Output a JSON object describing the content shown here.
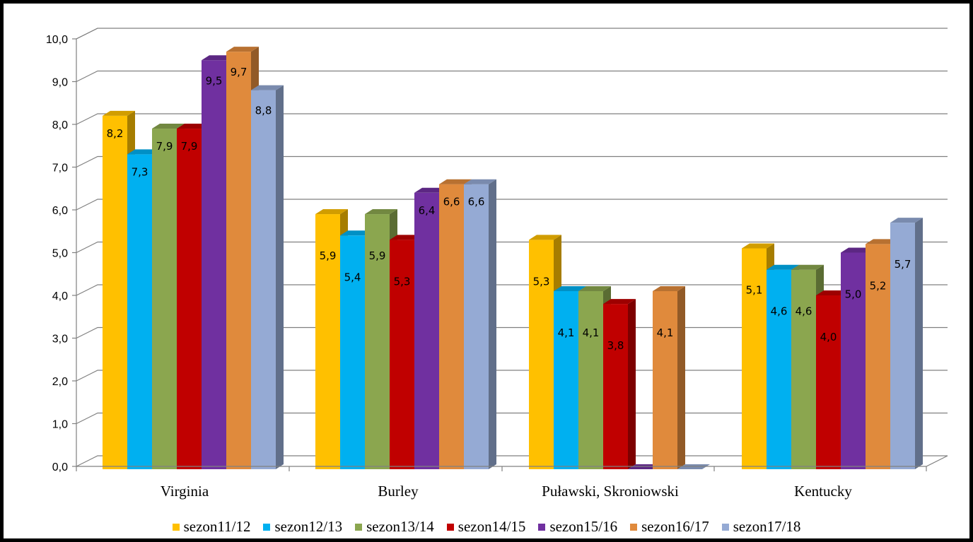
{
  "chart_data": {
    "type": "bar",
    "title": "",
    "xlabel": "",
    "ylabel": "",
    "ylim": [
      0,
      10
    ],
    "y_ticks": [
      "0,0",
      "1,0",
      "2,0",
      "3,0",
      "4,0",
      "5,0",
      "6,0",
      "7,0",
      "8,0",
      "9,0",
      "10,0"
    ],
    "grid": true,
    "legend_position": "bottom",
    "categories": [
      "Virginia",
      "Burley",
      "Puławski, Skroniowski",
      "Kentucky"
    ],
    "series": [
      {
        "name": "sezon11/12",
        "color": "#FFC000",
        "values": [
          8.2,
          5.9,
          5.3,
          5.1
        ],
        "labels": [
          "8,2",
          "5,9",
          "5,3",
          "5,1"
        ]
      },
      {
        "name": "sezon12/13",
        "color": "#00B0F0",
        "values": [
          7.3,
          5.4,
          4.1,
          4.6
        ],
        "labels": [
          "7,3",
          "5,4",
          "4,1",
          "4,6"
        ]
      },
      {
        "name": "sezon13/14",
        "color": "#8BA64F",
        "values": [
          7.9,
          5.9,
          4.1,
          4.6
        ],
        "labels": [
          "7,9",
          "5,9",
          "4,1",
          "4,6"
        ]
      },
      {
        "name": "sezon14/15",
        "color": "#C00000",
        "values": [
          7.9,
          5.3,
          3.8,
          4.0
        ],
        "labels": [
          "7,9",
          "5,3",
          "3,8",
          "4,0"
        ]
      },
      {
        "name": "sezon15/16",
        "color": "#7030A0",
        "values": [
          9.5,
          6.4,
          0,
          5.0
        ],
        "labels": [
          "9,5",
          "6,4",
          "",
          "5,0"
        ]
      },
      {
        "name": "sezon16/17",
        "color": "#E08A3C",
        "values": [
          9.7,
          6.6,
          4.1,
          5.2
        ],
        "labels": [
          "9,7",
          "6,6",
          "4,1",
          "5,2"
        ]
      },
      {
        "name": "sezon17/18",
        "color": "#95AAD4",
        "values": [
          8.8,
          6.6,
          0,
          5.7
        ],
        "labels": [
          "8,8",
          "6,6",
          "",
          "5,7"
        ]
      }
    ]
  }
}
